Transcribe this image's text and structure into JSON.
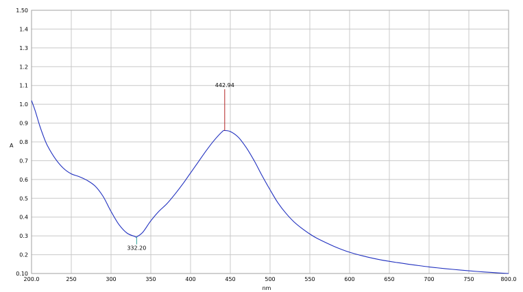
{
  "chart_data": {
    "type": "line",
    "xlabel": "nm",
    "ylabel": "A",
    "xlim": [
      200,
      800
    ],
    "ylim": [
      0.1,
      1.5
    ],
    "x_ticks": [
      "200.0",
      "250",
      "300",
      "350",
      "400",
      "450",
      "500",
      "550",
      "600",
      "650",
      "700",
      "750",
      "800.0"
    ],
    "y_ticks": [
      "0.10",
      "0.2",
      "0.3",
      "0.4",
      "0.5",
      "0.6",
      "0.7",
      "0.8",
      "0.9",
      "1.0",
      "1.1",
      "1.2",
      "1.3",
      "1.4",
      "1.50"
    ],
    "grid": true,
    "colors": {
      "line": "#1f2fbf",
      "peak_marker": "#b22222",
      "valley_marker": "#2aa198",
      "grid": "#c8c8c8",
      "frame": "#a0a0a0"
    },
    "series": [
      {
        "x": [
          200,
          205,
          210,
          215,
          220,
          230,
          240,
          250,
          260,
          270,
          280,
          290,
          300,
          310,
          320,
          330,
          332.2,
          340,
          350,
          360,
          370,
          380,
          390,
          400,
          410,
          420,
          430,
          440,
          442.94,
          450,
          460,
          470,
          480,
          490,
          500,
          510,
          520,
          530,
          540,
          550,
          560,
          580,
          600,
          620,
          640,
          660,
          680,
          700,
          720,
          740,
          760,
          780,
          800
        ],
        "y": [
          1.02,
          0.96,
          0.89,
          0.83,
          0.78,
          0.71,
          0.66,
          0.63,
          0.615,
          0.595,
          0.565,
          0.51,
          0.43,
          0.36,
          0.315,
          0.297,
          0.295,
          0.32,
          0.38,
          0.43,
          0.47,
          0.52,
          0.575,
          0.635,
          0.695,
          0.755,
          0.81,
          0.855,
          0.86,
          0.855,
          0.825,
          0.77,
          0.7,
          0.62,
          0.545,
          0.475,
          0.42,
          0.375,
          0.34,
          0.31,
          0.285,
          0.245,
          0.213,
          0.19,
          0.172,
          0.158,
          0.146,
          0.135,
          0.126,
          0.118,
          0.111,
          0.105,
          0.1
        ]
      }
    ],
    "annotations": [
      {
        "label": "442.94",
        "x": 442.94,
        "y": 0.86,
        "type": "peak",
        "top": 1.08
      },
      {
        "label": "332.20",
        "x": 332.2,
        "y": 0.295,
        "type": "valley",
        "bottom": 0.255
      }
    ]
  }
}
